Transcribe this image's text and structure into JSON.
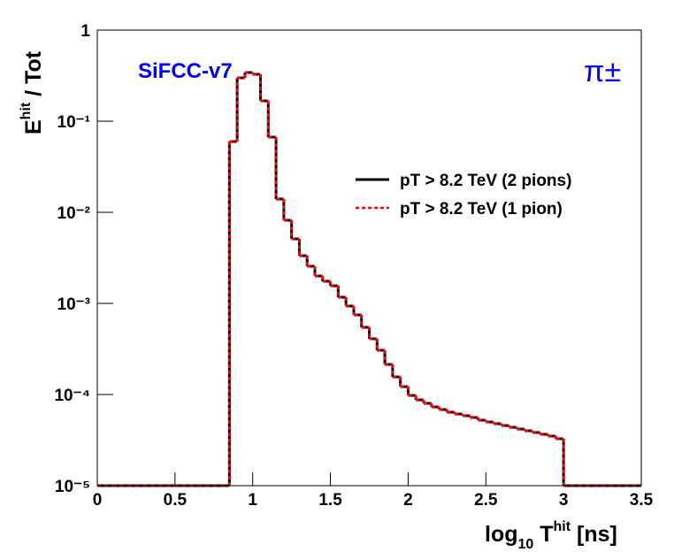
{
  "chart_data": {
    "type": "histogram",
    "title_annotations": [
      {
        "text": "SiFCC-v7",
        "color": "#0000ff"
      },
      {
        "text": "π±",
        "color": "#0000ff"
      }
    ],
    "xlabel": {
      "main": "log",
      "sub": "10",
      "mid": " T",
      "sup": "hit",
      "rest": " [ns]"
    },
    "ylabel": {
      "main": "E",
      "sup": "hit",
      "rest": "  / Tot"
    },
    "log_y": true,
    "legend": "right",
    "xlim": [
      0,
      3.5
    ],
    "xticks": [
      0,
      {
        "value": 0.5,
        "label": "0.5"
      },
      1,
      {
        "value": 1.5,
        "label": "1.5"
      },
      2,
      {
        "value": 2.5,
        "label": "2.5"
      },
      3,
      {
        "value": 3.5,
        "label": "3.5"
      }
    ],
    "ylim": [
      1e-05,
      1
    ],
    "yticks": [
      {
        "value": 1e-05,
        "label": "10⁻⁵"
      },
      {
        "value": 0.0001,
        "label": "10⁻⁴"
      },
      {
        "value": 0.001,
        "label": "10⁻³"
      },
      {
        "value": 0.01,
        "label": "10⁻²"
      },
      {
        "value": 0.1,
        "label": "10⁻¹"
      },
      1
    ],
    "bins": [
      0,
      0.05,
      0.1,
      0.15,
      0.2,
      0.25,
      0.3,
      0.35,
      0.4,
      0.45,
      0.5,
      0.55,
      0.6,
      0.65,
      0.7,
      0.75,
      0.8,
      0.85,
      0.9,
      0.95,
      1,
      1.05,
      1.1,
      1.15,
      1.2,
      1.25,
      1.3,
      1.35,
      1.4,
      1.45,
      1.5,
      1.55,
      1.6,
      1.65,
      1.7,
      1.75,
      1.8,
      1.85,
      1.9,
      1.95,
      2,
      2.05,
      2.1,
      2.15,
      2.2,
      2.25,
      2.3,
      2.35,
      2.4,
      2.45,
      2.5,
      2.55,
      2.6,
      2.65,
      2.7,
      2.75,
      2.8,
      2.85,
      2.9,
      2.95,
      3,
      3.05,
      3.1,
      3.15,
      3.2,
      3.25,
      3.3,
      3.35,
      3.4,
      3.45,
      3.5
    ],
    "series": [
      {
        "name": "pT > 8.2 TeV (2 pions)",
        "color": "#000000",
        "dash": false,
        "values": [
          0,
          0,
          0,
          0,
          0,
          0,
          0,
          0,
          0,
          0,
          0,
          0,
          0,
          0,
          0,
          0,
          0,
          0.0598,
          0.299,
          0.342,
          0.327,
          0.167,
          0.0669,
          0.014,
          0.00818,
          0.00511,
          0.00334,
          0.00256,
          0.002,
          0.00175,
          0.00156,
          0.00117,
          0.000935,
          0.000748,
          0.000547,
          0.000409,
          0.000306,
          0.000214,
          0.000156,
          0.000122,
          9.77e-05,
          8.74e-05,
          8e-05,
          7.31e-05,
          6.84e-05,
          6.4e-05,
          6.11e-05,
          5.85e-05,
          5.6e-05,
          5.23e-05,
          5e-05,
          4.78e-05,
          4.57e-05,
          4.37e-05,
          4.18e-05,
          4e-05,
          3.83e-05,
          3.66e-05,
          3.5e-05,
          3.27e-05,
          0,
          0,
          0,
          0,
          0,
          0,
          0,
          0,
          0,
          0
        ]
      },
      {
        "name": "pT > 8.2 TeV (1 pion)",
        "color": "#ff0000",
        "dash": true,
        "values": [
          0,
          0,
          0,
          0,
          0,
          0,
          0,
          0,
          0,
          0,
          0,
          0,
          0,
          0,
          0,
          0,
          0,
          0.0598,
          0.299,
          0.342,
          0.327,
          0.167,
          0.0669,
          0.014,
          0.00818,
          0.00511,
          0.00334,
          0.00256,
          0.002,
          0.00175,
          0.00156,
          0.00117,
          0.000935,
          0.000748,
          0.000547,
          0.000409,
          0.000306,
          0.000214,
          0.000156,
          0.000122,
          9.77e-05,
          8.74e-05,
          8e-05,
          7.31e-05,
          6.84e-05,
          6.4e-05,
          6.11e-05,
          5.85e-05,
          5.6e-05,
          5.23e-05,
          5e-05,
          4.78e-05,
          4.57e-05,
          4.37e-05,
          4.18e-05,
          4e-05,
          3.83e-05,
          3.66e-05,
          3.5e-05,
          3.27e-05,
          0,
          0,
          0,
          0,
          0,
          0,
          0,
          0,
          0,
          0
        ]
      }
    ]
  }
}
